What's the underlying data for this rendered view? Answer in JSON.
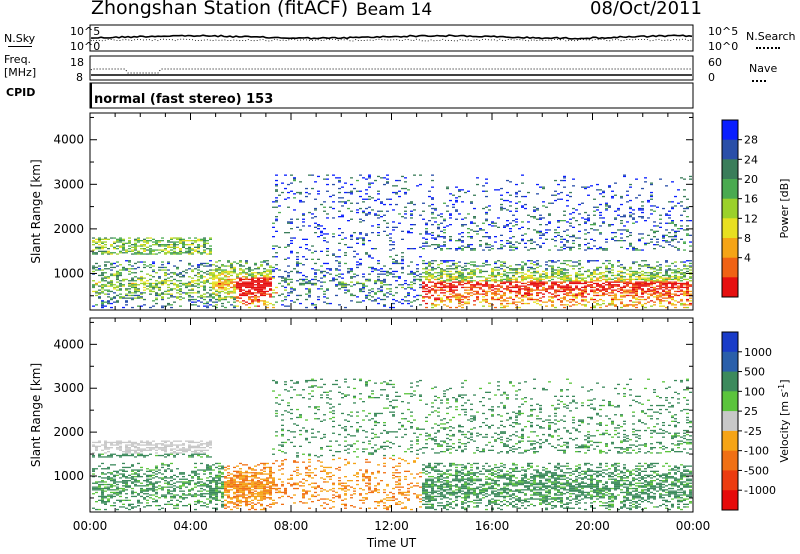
{
  "header": {
    "station": "Zhongshan Station (fitACF)",
    "beam": "Beam 14",
    "date": "08/Oct/2011"
  },
  "summary_panels": {
    "nsky_label": "N.Sky",
    "nsky_ticks": [
      "10^5",
      "10^0"
    ],
    "nsearch_label": "N.Search",
    "nsearch_ticks": [
      "10^5",
      "10^0"
    ],
    "freq_label_line1": "Freq.",
    "freq_label_line2": "[MHz]",
    "freq_ticks": [
      "18",
      "8"
    ],
    "nave_label": "Nave",
    "nave_ticks": [
      "60",
      "0"
    ],
    "cpid_label": "CPID",
    "cpid_text": "normal (fast stereo) 153"
  },
  "chart_data": [
    {
      "type": "heatmap",
      "name": "power",
      "ylabel": "Slant Range [km]",
      "yticks": [
        "4000",
        "3000",
        "2000",
        "1000"
      ],
      "ylim": [
        180,
        4600
      ],
      "colorbar_label": "Power [dB]",
      "colorbar_ticks": [
        "28",
        "24",
        "20",
        "16",
        "12",
        "8",
        "4"
      ],
      "colorscale": [
        "#0a1fff",
        "#2a4fa8",
        "#3a7d5a",
        "#4aaa50",
        "#9bd12a",
        "#e8e020",
        "#f5a416",
        "#f06214",
        "#e60f0f"
      ]
    },
    {
      "type": "heatmap",
      "name": "velocity",
      "ylabel": "Slant Range [km]",
      "yticks": [
        "4000",
        "3000",
        "2000",
        "1000"
      ],
      "ylim": [
        180,
        4600
      ],
      "colorbar_label": "Velocity [m s",
      "colorbar_sup": "-1",
      "colorbar_label_end": "]",
      "colorbar_ticks": [
        "1000",
        "500",
        "100",
        "25",
        "-25",
        "-100",
        "-500",
        "-1000"
      ],
      "colorscale": [
        "#1a3cc8",
        "#2a5faa",
        "#3c8a5c",
        "#5bc43c",
        "#c8c8c8",
        "#f5a416",
        "#f07014",
        "#ec3c10",
        "#e60a0a"
      ]
    }
  ],
  "xaxis": {
    "ticks": [
      "00:00",
      "04:00",
      "08:00",
      "12:00",
      "16:00",
      "20:00",
      "00:00"
    ],
    "label": "Time UT"
  }
}
